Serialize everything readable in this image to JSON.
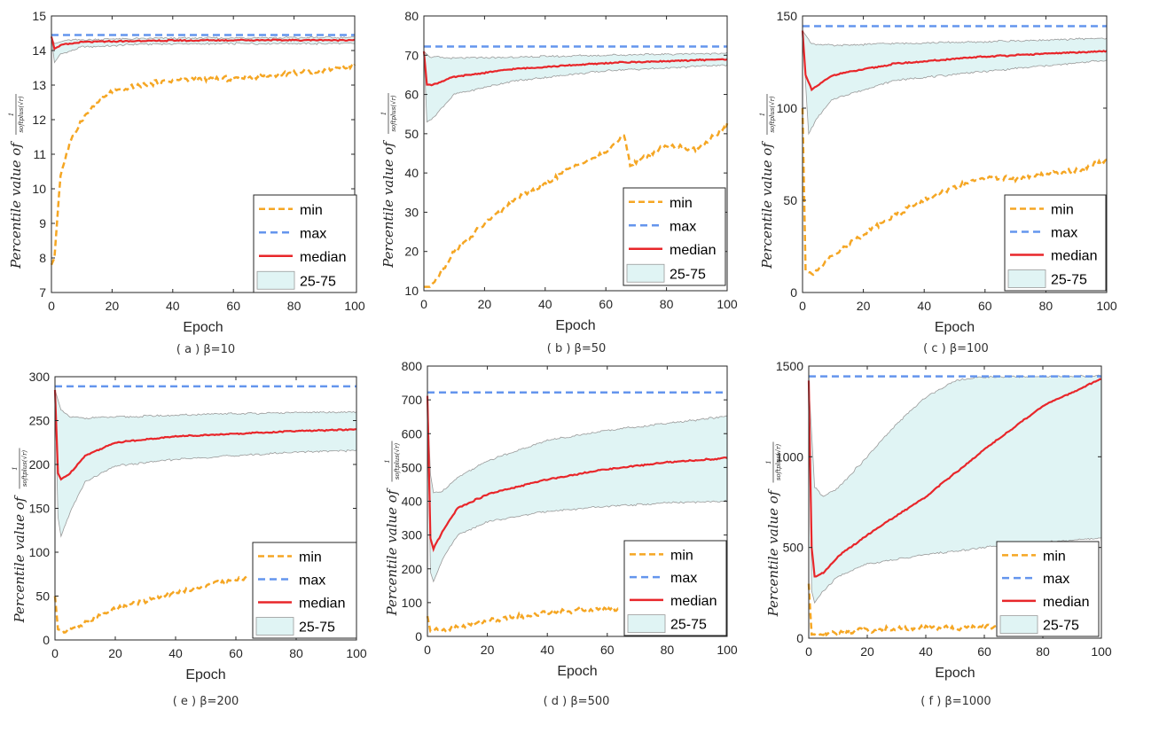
{
  "figure": {
    "colors": {
      "min": "#f5a623",
      "max": "#6495ed",
      "median": "#e8262a",
      "band_fill": "#e0f4f4",
      "band_edge": "#9a9a9a"
    },
    "x_ticks": [
      "0",
      "20",
      "40",
      "60",
      "80",
      "100"
    ],
    "xlabel": "Epoch",
    "ylabel_prefix": "Percentile value of",
    "ylabel_frac_num": "1",
    "ylabel_frac_den": "softplus(√r)",
    "legend": [
      "min",
      "max",
      "median",
      "25-75"
    ]
  },
  "chart_data": [
    {
      "type": "line",
      "caption": "( a )  β=10",
      "beta": 10,
      "x_range": [
        0,
        100
      ],
      "ylim": [
        7,
        15
      ],
      "y_ticks": [
        "7",
        "8",
        "9",
        "10",
        "11",
        "12",
        "13",
        "14",
        "15"
      ],
      "xlabel": "Epoch",
      "series": [
        {
          "name": "max",
          "values": [
            14.45,
            14.45
          ]
        },
        {
          "name": "median",
          "points": [
            [
              0,
              14.4
            ],
            [
              1,
              14.05
            ],
            [
              3,
              14.15
            ],
            [
              10,
              14.25
            ],
            [
              30,
              14.28
            ],
            [
              60,
              14.3
            ],
            [
              100,
              14.3
            ]
          ]
        },
        {
          "name": "25th",
          "points": [
            [
              0,
              14.4
            ],
            [
              1,
              13.65
            ],
            [
              3,
              13.9
            ],
            [
              10,
              14.1
            ],
            [
              30,
              14.18
            ],
            [
              60,
              14.2
            ],
            [
              100,
              14.2
            ]
          ]
        },
        {
          "name": "75th",
          "points": [
            [
              0,
              14.4
            ],
            [
              1,
              14.2
            ],
            [
              5,
              14.3
            ],
            [
              30,
              14.35
            ],
            [
              100,
              14.38
            ]
          ]
        },
        {
          "name": "min",
          "points": [
            [
              0,
              7.8
            ],
            [
              1,
              8.0
            ],
            [
              3,
              10.4
            ],
            [
              6,
              11.3
            ],
            [
              10,
              12.0
            ],
            [
              15,
              12.5
            ],
            [
              20,
              12.8
            ],
            [
              30,
              13.0
            ],
            [
              40,
              13.15
            ],
            [
              60,
              13.2
            ],
            [
              80,
              13.35
            ],
            [
              100,
              13.55
            ]
          ]
        }
      ]
    },
    {
      "type": "line",
      "caption": "( b )  β=50",
      "beta": 50,
      "x_range": [
        0,
        100
      ],
      "ylim": [
        10,
        80
      ],
      "y_ticks": [
        "10",
        "20",
        "30",
        "40",
        "50",
        "60",
        "70",
        "80"
      ],
      "xlabel": "Epoch",
      "series": [
        {
          "name": "max",
          "values": [
            72.2,
            72.2
          ]
        },
        {
          "name": "median",
          "points": [
            [
              0,
              71
            ],
            [
              1,
              62.5
            ],
            [
              3,
              62.5
            ],
            [
              10,
              64.5
            ],
            [
              30,
              66.5
            ],
            [
              60,
              68
            ],
            [
              100,
              69
            ]
          ]
        },
        {
          "name": "25th",
          "points": [
            [
              0,
              71
            ],
            [
              1,
              53
            ],
            [
              3,
              54
            ],
            [
              10,
              60
            ],
            [
              30,
              63.5
            ],
            [
              60,
              66
            ],
            [
              100,
              67.5
            ]
          ]
        },
        {
          "name": "75th",
          "points": [
            [
              0,
              71
            ],
            [
              2,
              69.5
            ],
            [
              10,
              69.3
            ],
            [
              30,
              69.5
            ],
            [
              60,
              70
            ],
            [
              100,
              70.5
            ]
          ]
        },
        {
          "name": "min",
          "points": [
            [
              0,
              11
            ],
            [
              2,
              11
            ],
            [
              5,
              14
            ],
            [
              10,
              20
            ],
            [
              20,
              27
            ],
            [
              30,
              33
            ],
            [
              40,
              37
            ],
            [
              50,
              42
            ],
            [
              60,
              45
            ],
            [
              66,
              50
            ],
            [
              68,
              42
            ],
            [
              80,
              47
            ],
            [
              90,
              46
            ],
            [
              100,
              52
            ]
          ]
        }
      ]
    },
    {
      "type": "line",
      "caption": "( c )  β=100",
      "beta": 100,
      "x_range": [
        0,
        100
      ],
      "ylim": [
        0,
        150
      ],
      "y_ticks": [
        "0",
        "50",
        "100",
        "150"
      ],
      "xlabel": "Epoch",
      "series": [
        {
          "name": "max",
          "values": [
            144.5,
            144.5
          ]
        },
        {
          "name": "median",
          "points": [
            [
              0,
              142
            ],
            [
              1,
              118
            ],
            [
              3,
              110
            ],
            [
              10,
              118
            ],
            [
              30,
              124
            ],
            [
              60,
              128
            ],
            [
              100,
              131
            ]
          ]
        },
        {
          "name": "25th",
          "points": [
            [
              0,
              142
            ],
            [
              2,
              86
            ],
            [
              5,
              95
            ],
            [
              10,
              105
            ],
            [
              30,
              115
            ],
            [
              60,
              120
            ],
            [
              100,
              126
            ]
          ]
        },
        {
          "name": "75th",
          "points": [
            [
              0,
              142
            ],
            [
              3,
              135
            ],
            [
              10,
              134
            ],
            [
              30,
              135
            ],
            [
              60,
              136
            ],
            [
              100,
              138
            ]
          ]
        },
        {
          "name": "min",
          "points": [
            [
              0,
              100
            ],
            [
              1,
              12
            ],
            [
              3,
              10
            ],
            [
              10,
              20
            ],
            [
              20,
              32
            ],
            [
              30,
              42
            ],
            [
              40,
              50
            ],
            [
              50,
              57
            ],
            [
              60,
              62
            ],
            [
              70,
              62
            ],
            [
              80,
              64
            ],
            [
              90,
              66
            ],
            [
              100,
              72
            ]
          ]
        }
      ]
    },
    {
      "type": "line",
      "caption": "( e )  β=200",
      "beta": 200,
      "x_range": [
        0,
        100
      ],
      "ylim": [
        0,
        300
      ],
      "y_ticks": [
        "0",
        "50",
        "100",
        "150",
        "200",
        "250",
        "300"
      ],
      "xlabel": "Epoch",
      "series": [
        {
          "name": "max",
          "values": [
            289,
            289
          ]
        },
        {
          "name": "median",
          "points": [
            [
              0,
              285
            ],
            [
              1,
              190
            ],
            [
              2,
              183
            ],
            [
              5,
              190
            ],
            [
              10,
              210
            ],
            [
              20,
              225
            ],
            [
              40,
              232
            ],
            [
              60,
              235
            ],
            [
              80,
              238
            ],
            [
              100,
              240
            ]
          ]
        },
        {
          "name": "25th",
          "points": [
            [
              0,
              285
            ],
            [
              1,
              140
            ],
            [
              2,
              118
            ],
            [
              5,
              145
            ],
            [
              10,
              180
            ],
            [
              20,
              198
            ],
            [
              40,
              206
            ],
            [
              60,
              210
            ],
            [
              80,
              214
            ],
            [
              100,
              216
            ]
          ]
        },
        {
          "name": "75th",
          "points": [
            [
              0,
              285
            ],
            [
              2,
              262
            ],
            [
              5,
              254
            ],
            [
              10,
              253
            ],
            [
              40,
              256
            ],
            [
              60,
              258
            ],
            [
              100,
              260
            ]
          ]
        },
        {
          "name": "min",
          "points": [
            [
              0,
              50
            ],
            [
              1,
              12
            ],
            [
              3,
              10
            ],
            [
              10,
              20
            ],
            [
              20,
              35
            ],
            [
              30,
              45
            ],
            [
              40,
              55
            ],
            [
              50,
              62
            ],
            [
              60,
              68
            ],
            [
              64,
              72
            ]
          ]
        }
      ]
    },
    {
      "type": "line",
      "caption": "( d )  β=500",
      "beta": 500,
      "x_range": [
        0,
        100
      ],
      "ylim": [
        0,
        800
      ],
      "y_ticks": [
        "0",
        "100",
        "200",
        "300",
        "400",
        "500",
        "600",
        "700",
        "800"
      ],
      "xlabel": "Epoch",
      "series": [
        {
          "name": "max",
          "values": [
            722,
            722
          ]
        },
        {
          "name": "median",
          "points": [
            [
              0,
              712
            ],
            [
              1,
              290
            ],
            [
              2,
              258
            ],
            [
              5,
              310
            ],
            [
              10,
              380
            ],
            [
              20,
              420
            ],
            [
              40,
              465
            ],
            [
              60,
              495
            ],
            [
              80,
              515
            ],
            [
              100,
              528
            ]
          ]
        },
        {
          "name": "25th",
          "points": [
            [
              0,
              712
            ],
            [
              1,
              190
            ],
            [
              2,
              162
            ],
            [
              5,
              230
            ],
            [
              10,
              300
            ],
            [
              20,
              340
            ],
            [
              40,
              370
            ],
            [
              60,
              385
            ],
            [
              80,
              395
            ],
            [
              100,
              400
            ]
          ]
        },
        {
          "name": "75th",
          "points": [
            [
              0,
              712
            ],
            [
              1,
              480
            ],
            [
              2,
              425
            ],
            [
              5,
              430
            ],
            [
              10,
              470
            ],
            [
              20,
              520
            ],
            [
              40,
              580
            ],
            [
              60,
              610
            ],
            [
              80,
              630
            ],
            [
              100,
              652
            ]
          ]
        },
        {
          "name": "min",
          "points": [
            [
              0,
              60
            ],
            [
              1,
              15
            ],
            [
              5,
              20
            ],
            [
              20,
              45
            ],
            [
              40,
              70
            ],
            [
              50,
              78
            ],
            [
              60,
              80
            ],
            [
              64,
              82
            ]
          ]
        }
      ]
    },
    {
      "type": "line",
      "caption": "( f )  β=1000",
      "beta": 1000,
      "x_range": [
        0,
        100
      ],
      "ylim": [
        0,
        1500
      ],
      "y_ticks": [
        "0",
        "500",
        "1000",
        "1500"
      ],
      "xlabel": "Epoch",
      "series": [
        {
          "name": "max",
          "values": [
            1443,
            1443
          ]
        },
        {
          "name": "median",
          "points": [
            [
              0,
              1420
            ],
            [
              1,
              500
            ],
            [
              2,
              340
            ],
            [
              5,
              360
            ],
            [
              10,
              450
            ],
            [
              20,
              570
            ],
            [
              40,
              780
            ],
            [
              60,
              1040
            ],
            [
              80,
              1280
            ],
            [
              100,
              1430
            ]
          ]
        },
        {
          "name": "25th",
          "points": [
            [
              0,
              1420
            ],
            [
              1,
              260
            ],
            [
              2,
              195
            ],
            [
              5,
              260
            ],
            [
              10,
              340
            ],
            [
              20,
              410
            ],
            [
              40,
              460
            ],
            [
              60,
              500
            ],
            [
              80,
              530
            ],
            [
              100,
              550
            ]
          ]
        },
        {
          "name": "75th",
          "points": [
            [
              0,
              1420
            ],
            [
              2,
              830
            ],
            [
              5,
              780
            ],
            [
              10,
              830
            ],
            [
              20,
              1000
            ],
            [
              30,
              1180
            ],
            [
              40,
              1330
            ],
            [
              50,
              1420
            ],
            [
              60,
              1440
            ],
            [
              100,
              1445
            ]
          ]
        },
        {
          "name": "min",
          "points": [
            [
              0,
              300
            ],
            [
              1,
              20
            ],
            [
              5,
              25
            ],
            [
              20,
              45
            ],
            [
              40,
              55
            ],
            [
              60,
              60
            ],
            [
              64,
              58
            ]
          ]
        }
      ]
    }
  ]
}
